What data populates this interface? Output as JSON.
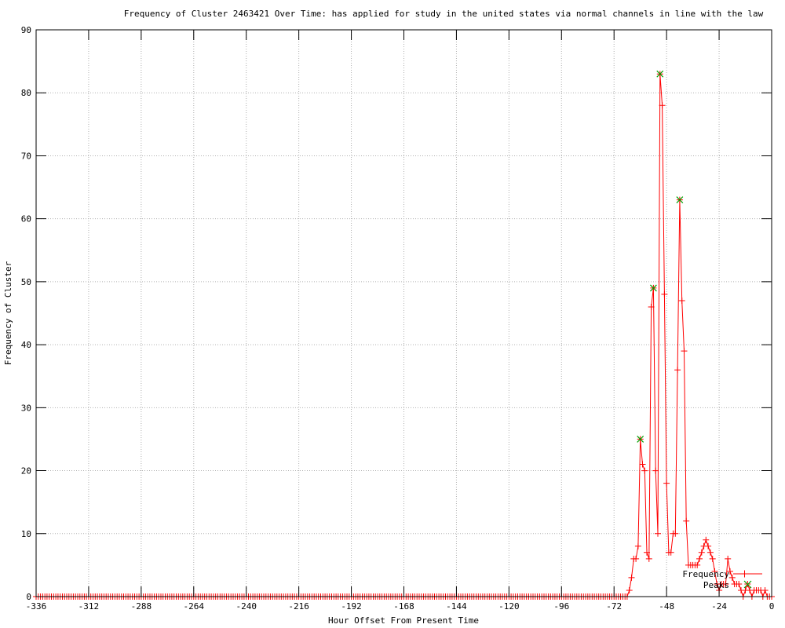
{
  "page": {
    "background": "#ffffff"
  },
  "chart_data": {
    "type": "line",
    "title": "Frequency of Cluster 2463421 Over Time: has applied for study in the united states via normal channels in line with the law",
    "xlabel": "Hour Offset From Present Time",
    "ylabel": "Frequency of Cluster",
    "xlim": [
      -336,
      0
    ],
    "ylim": [
      0,
      90
    ],
    "xticks": [
      -336,
      -312,
      -288,
      -264,
      -240,
      -216,
      -192,
      -168,
      -144,
      -120,
      -96,
      -72,
      -48,
      -24,
      0
    ],
    "yticks": [
      0,
      10,
      20,
      30,
      40,
      50,
      60,
      70,
      80,
      90
    ],
    "grid": true,
    "grid_style": "dotted",
    "legend_position": "bottom-right-inside",
    "colors": {
      "frequency_line": "#ff0000",
      "peak_marker": "#00a000",
      "grid": "#b0b0b0",
      "border": "#000000",
      "text": "#000000"
    },
    "series": [
      {
        "name": "Frequency",
        "color": "#ff0000",
        "marker": "plus",
        "style": "line-with-markers",
        "zero_from": -336,
        "zero_to": -67,
        "points": [
          [
            -66,
            0
          ],
          [
            -65,
            1
          ],
          [
            -64,
            3
          ],
          [
            -63,
            6
          ],
          [
            -62,
            6
          ],
          [
            -61,
            8
          ],
          [
            -60,
            25
          ],
          [
            -59,
            21
          ],
          [
            -58,
            20
          ],
          [
            -57,
            7
          ],
          [
            -56,
            6
          ],
          [
            -55,
            46
          ],
          [
            -54,
            49
          ],
          [
            -53,
            20
          ],
          [
            -52,
            10
          ],
          [
            -51,
            83
          ],
          [
            -50,
            78
          ],
          [
            -49,
            48
          ],
          [
            -48,
            18
          ],
          [
            -47,
            7
          ],
          [
            -46,
            7
          ],
          [
            -45,
            10
          ],
          [
            -44,
            10
          ],
          [
            -43,
            36
          ],
          [
            -42,
            63
          ],
          [
            -41,
            47
          ],
          [
            -40,
            39
          ],
          [
            -39,
            12
          ],
          [
            -38,
            5
          ],
          [
            -37,
            5
          ],
          [
            -36,
            5
          ],
          [
            -35,
            5
          ],
          [
            -34,
            5
          ],
          [
            -33,
            6
          ],
          [
            -32,
            7
          ],
          [
            -31,
            8
          ],
          [
            -30,
            9
          ],
          [
            -29,
            8
          ],
          [
            -28,
            7
          ],
          [
            -27,
            6
          ],
          [
            -26,
            4
          ],
          [
            -25,
            2
          ],
          [
            -24,
            1
          ],
          [
            -23,
            2
          ],
          [
            -22,
            2
          ],
          [
            -21,
            2
          ],
          [
            -20,
            6
          ],
          [
            -19,
            4
          ],
          [
            -18,
            3
          ],
          [
            -17,
            2
          ],
          [
            -16,
            2
          ],
          [
            -15,
            2
          ],
          [
            -14,
            1
          ],
          [
            -13,
            0
          ],
          [
            -12,
            1
          ],
          [
            -11,
            2
          ],
          [
            -10,
            1
          ],
          [
            -9,
            0
          ],
          [
            -8,
            1
          ],
          [
            -7,
            1
          ],
          [
            -6,
            1
          ],
          [
            -5,
            1
          ],
          [
            -4,
            0
          ],
          [
            -3,
            1
          ],
          [
            -2,
            0
          ],
          [
            -1,
            0
          ],
          [
            0,
            0
          ]
        ]
      },
      {
        "name": "Peaks",
        "color": "#00a000",
        "marker": "x",
        "style": "markers-only",
        "points": [
          [
            -60,
            25
          ],
          [
            -54,
            49
          ],
          [
            -51,
            83
          ],
          [
            -42,
            63
          ]
        ]
      }
    ]
  }
}
